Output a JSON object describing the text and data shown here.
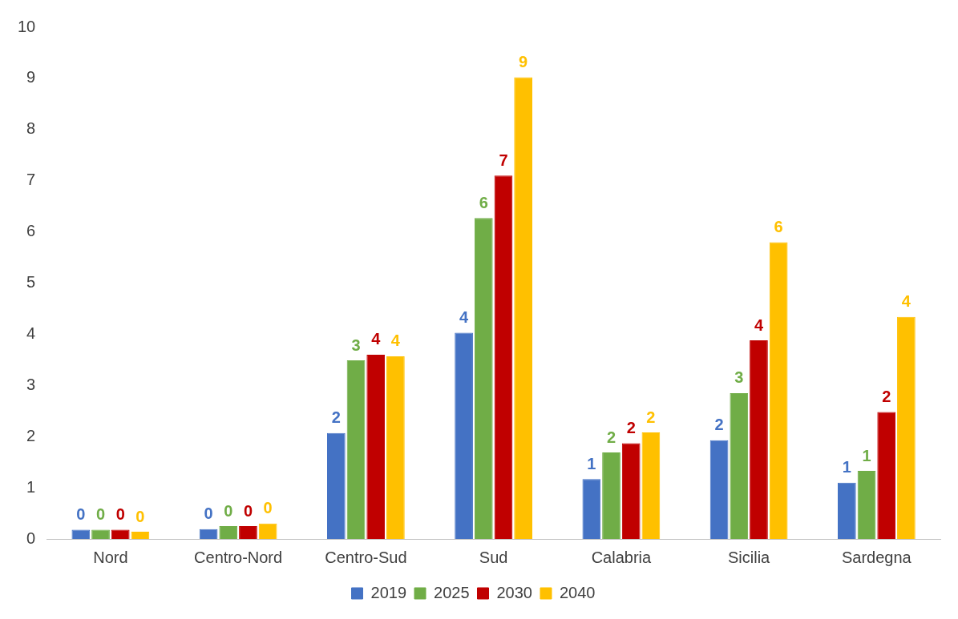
{
  "chart_data": {
    "type": "bar",
    "categories": [
      "Nord",
      "Centro-Nord",
      "Centro-Sud",
      "Sud",
      "Calabria",
      "Sicilia",
      "Sardegna"
    ],
    "series": [
      {
        "name": "2019",
        "color": "#4472c4",
        "values": [
          0.18,
          0.19,
          2.07,
          4.03,
          1.17,
          1.93,
          1.1
        ],
        "value_labels": [
          "0",
          "0",
          "2",
          "4",
          "1",
          "2",
          "1"
        ]
      },
      {
        "name": "2025",
        "color": "#70ad47",
        "values": [
          0.18,
          0.25,
          3.49,
          6.27,
          1.69,
          2.85,
          1.33
        ],
        "value_labels": [
          "0",
          "0",
          "3",
          "6",
          "2",
          "3",
          "1"
        ]
      },
      {
        "name": "2030",
        "color": "#c00000",
        "values": [
          0.18,
          0.25,
          3.6,
          7.1,
          1.87,
          3.88,
          2.48
        ],
        "value_labels": [
          "0",
          "0",
          "4",
          "7",
          "2",
          "4",
          "2"
        ]
      },
      {
        "name": "2040",
        "color": "#ffc000",
        "values": [
          0.14,
          0.3,
          3.57,
          9.02,
          2.08,
          5.8,
          4.34
        ],
        "value_labels": [
          "0",
          "0",
          "4",
          "9",
          "2",
          "6",
          "4"
        ]
      }
    ],
    "ylim": [
      0,
      10
    ],
    "yticks": [
      0,
      1,
      2,
      3,
      4,
      5,
      6,
      7,
      8,
      9,
      10
    ],
    "grid": false,
    "legend": "bottom"
  }
}
